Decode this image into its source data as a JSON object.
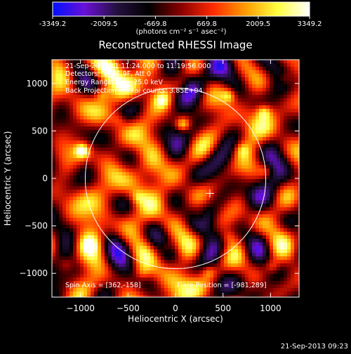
{
  "colorbar": {
    "ticks": [
      "-3349.2",
      "-2009.5",
      "-669.8",
      "669.8",
      "2009.5",
      "3349.2"
    ],
    "tick_values": [
      -3349.2,
      -2009.5,
      -669.8,
      669.8,
      2009.5,
      3349.2
    ],
    "range": [
      -3349.2,
      3349.2
    ],
    "units_label": "(photons cm⁻² s⁻¹ asec⁻²)"
  },
  "chart_data": {
    "type": "heatmap",
    "title": "Reconstructed RHESSI Image",
    "xlabel": "Heliocentric X (arcsec)",
    "ylabel": "Heliocentric Y (arcsec)",
    "xlim": [
      -1300,
      1300
    ],
    "ylim": [
      -1250,
      1250
    ],
    "x_ticks": [
      -1000,
      -500,
      0,
      500,
      1000
    ],
    "y_ticks": [
      -1000,
      -500,
      0,
      500,
      1000
    ],
    "x_tick_labels": [
      "−1000",
      "−500",
      "0",
      "500",
      "1000"
    ],
    "y_tick_labels": [
      "−1000",
      "−500",
      "0",
      "500",
      "1000"
    ],
    "solar_limb_radius_arcsec": 950,
    "flare_marker": [
      362,
      -158
    ],
    "info_lines": [
      "21-Sep-2013 11:11:24.000 to 11:19:56.000",
      "Detectors: 7F 8F 9F, Att 0",
      "Energy Range: 6.0 - 25.0 keV",
      "Back Projection    Total counts: 3.85E+04"
    ],
    "spin_axis_text": "Spin Axis = [362,-158]",
    "flare_position_text": "Flare Position = [-981,289]",
    "colormap": "blue-purple-black-red-yellow-white",
    "hot_spots": [
      {
        "x": -980,
        "y": 290,
        "v": 3000
      },
      {
        "x": 80,
        "y": 570,
        "v": 2600
      },
      {
        "x": 560,
        "y": 870,
        "v": 2000
      },
      {
        "x": 930,
        "y": 700,
        "v": 1900
      },
      {
        "x": -780,
        "y": 890,
        "v": 1600
      },
      {
        "x": -140,
        "y": 820,
        "v": 1500
      },
      {
        "x": 350,
        "y": -980,
        "v": 1500
      },
      {
        "x": 1020,
        "y": -930,
        "v": 1400
      },
      {
        "x": 700,
        "y": 300,
        "v": 1300
      },
      {
        "x": -400,
        "y": -200,
        "v": 1300
      },
      {
        "x": 250,
        "y": -400,
        "v": 1200
      },
      {
        "x": -900,
        "y": -700,
        "v": 1100
      },
      {
        "x": 950,
        "y": 80,
        "v": 1400
      },
      {
        "x": -100,
        "y": -720,
        "v": 1200
      },
      {
        "x": 560,
        "y": -620,
        "v": 1000
      },
      {
        "x": -600,
        "y": 620,
        "v": 1100
      },
      {
        "x": 60,
        "y": 980,
        "v": 1000
      },
      {
        "x": -1150,
        "y": -900,
        "v": 900
      },
      {
        "x": 1150,
        "y": 1050,
        "v": 1100
      },
      {
        "x": -350,
        "y": -1000,
        "v": 1000
      }
    ]
  },
  "footer": {
    "timestamp": "21-Sep-2013 09:23"
  },
  "colors": {
    "limb": "#ffffff",
    "background": "#000000",
    "colormap_stops": [
      "#0010ff",
      "#6a10d8",
      "#25103f",
      "#000000",
      "#8a0000",
      "#ff2a00",
      "#ff9c00",
      "#ffff40",
      "#ffffff"
    ]
  }
}
